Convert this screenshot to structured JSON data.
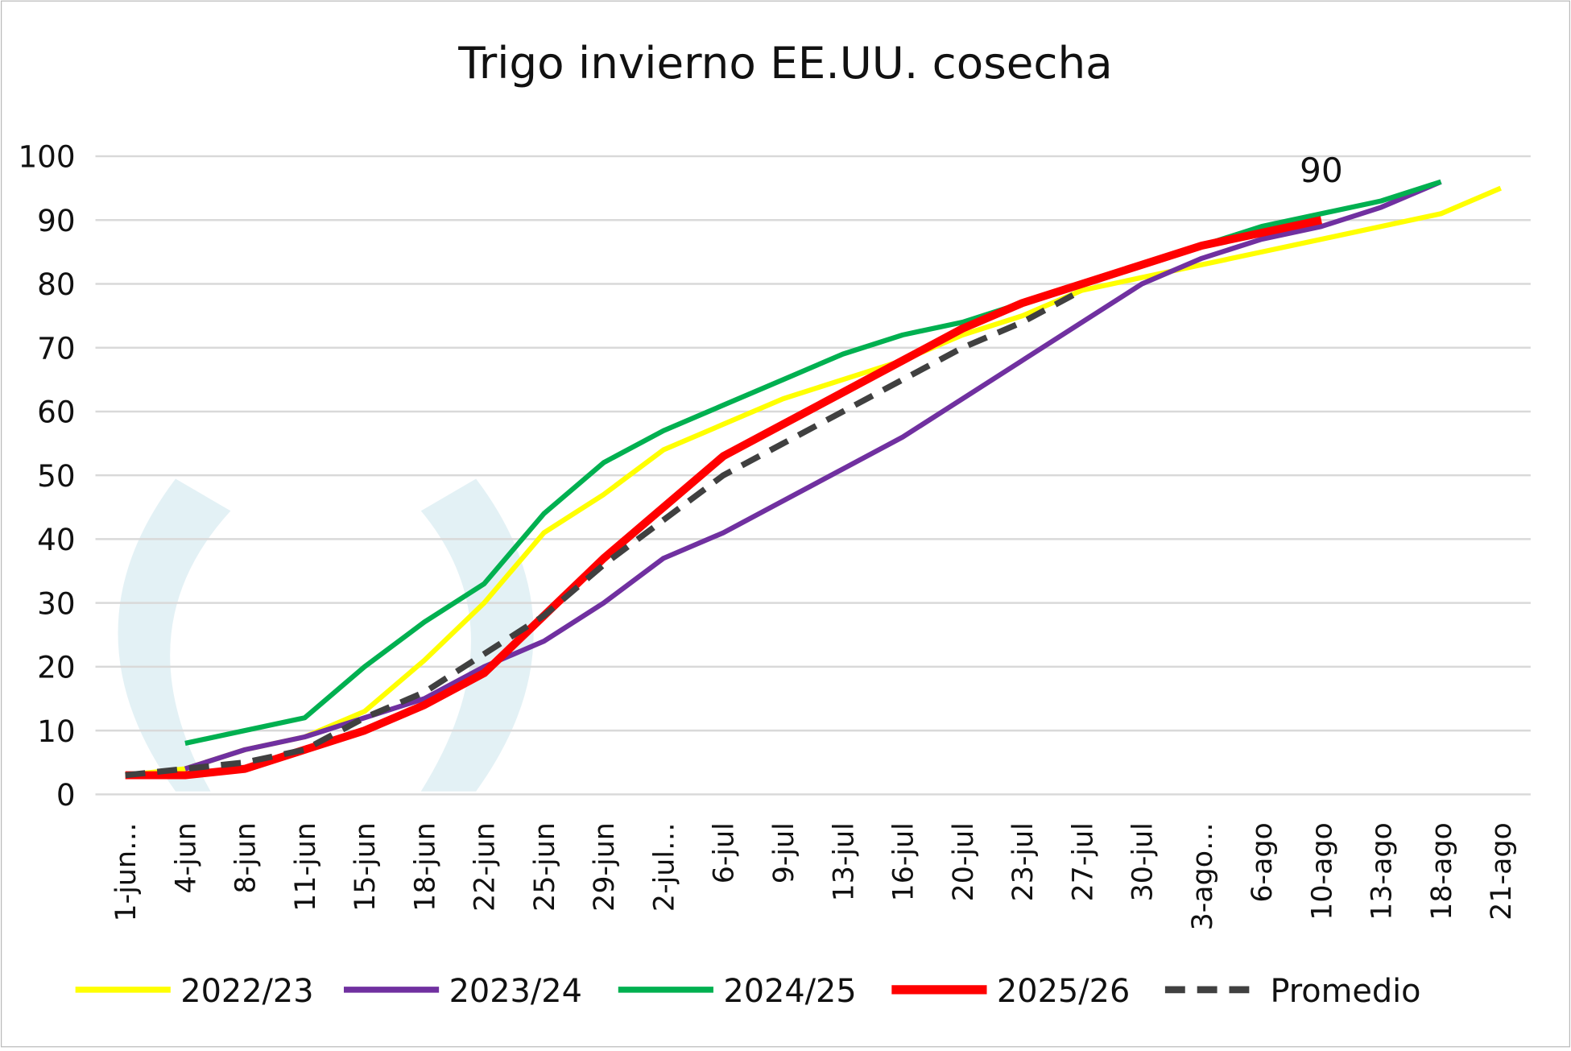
{
  "chart_data": {
    "type": "line",
    "title": "Trigo invierno EE.UU. cosecha",
    "categories": [
      "1-jun…",
      "4-jun",
      "8-jun",
      "11-jun",
      "15-jun",
      "18-jun",
      "22-jun",
      "25-jun",
      "29-jun",
      "2-jul…",
      "6-jul",
      "9-jul",
      "13-jul",
      "16-jul",
      "20-jul",
      "23-jul",
      "27-jul",
      "30-jul",
      "3-ago…",
      "6-ago",
      "10-ago",
      "13-ago",
      "18-ago",
      "21-ago"
    ],
    "series": [
      {
        "name": "2022/23",
        "color": "#ffff00",
        "dash": false,
        "width": 5,
        "values": [
          3,
          4,
          7,
          9,
          13,
          21,
          30,
          41,
          47,
          54,
          58,
          62,
          65,
          68,
          72,
          75,
          79,
          81,
          83,
          85,
          87,
          89,
          91,
          95
        ]
      },
      {
        "name": "2023/24",
        "color": "#7030a0",
        "dash": false,
        "width": 5,
        "values": [
          null,
          4,
          7,
          9,
          12,
          15,
          20,
          24,
          30,
          37,
          41,
          46,
          51,
          56,
          62,
          68,
          74,
          80,
          84,
          87,
          89,
          92,
          96,
          null
        ]
      },
      {
        "name": "2024/25",
        "color": "#00b050",
        "dash": false,
        "width": 5,
        "values": [
          null,
          8,
          10,
          12,
          20,
          27,
          33,
          44,
          52,
          57,
          61,
          65,
          69,
          72,
          74,
          77,
          80,
          83,
          86,
          89,
          91,
          93,
          96,
          null
        ]
      },
      {
        "name": "2025/26",
        "color": "#ff0000",
        "dash": false,
        "width": 8,
        "values": [
          3,
          3,
          4,
          7,
          10,
          14,
          19,
          28,
          37,
          45,
          53,
          58,
          63,
          68,
          73,
          77,
          80,
          83,
          86,
          88,
          90,
          null,
          null,
          null
        ]
      },
      {
        "name": "Promedio",
        "color": "#404040",
        "dash": true,
        "width": 6,
        "values": [
          3,
          4,
          5,
          7,
          12,
          16,
          22,
          28,
          36,
          43,
          50,
          55,
          60,
          65,
          70,
          74,
          79,
          null,
          null,
          null,
          null,
          null,
          null,
          null
        ]
      }
    ],
    "annotations": [
      {
        "text": "90",
        "series": 3,
        "index": 20
      }
    ],
    "ylim": [
      0,
      100
    ],
    "yticks": [
      0,
      10,
      20,
      30,
      40,
      50,
      60,
      70,
      80,
      90,
      100
    ],
    "grid": true,
    "legend": "bottom"
  }
}
